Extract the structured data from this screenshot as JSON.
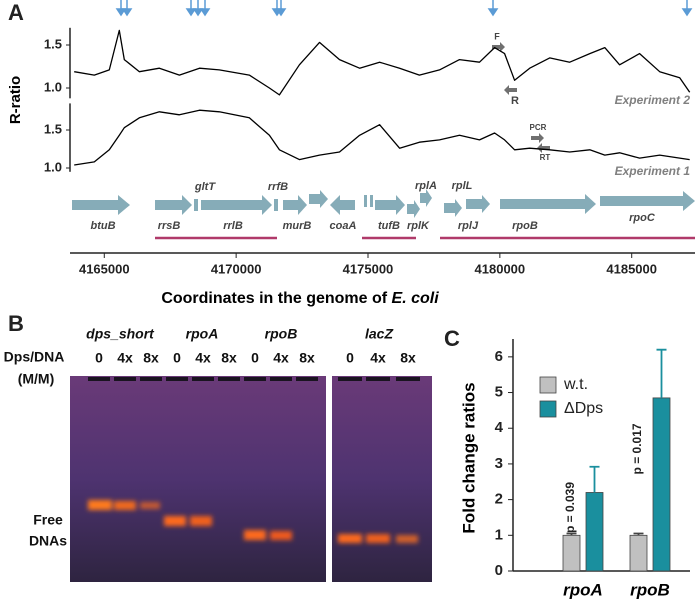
{
  "figure": {
    "panel_labels": [
      "A",
      "B",
      "C"
    ],
    "gel": {
      "lanes": [
        "dps_short",
        "rpoA",
        "rpoB",
        "lacZ"
      ],
      "ratio_label": [
        "Dps/DNA",
        "(M/M)"
      ],
      "lane_ratios": [
        "0",
        "4x",
        "8x",
        "0",
        "4x",
        "8x",
        "0",
        "4x",
        "8x",
        "0",
        "4x",
        "8x"
      ],
      "band_label": [
        "Free",
        "DNAs"
      ]
    }
  },
  "chart_data": [
    {
      "type": "line",
      "ylabel": "R-ratio",
      "x": [
        4163860,
        4164620,
        4165190,
        4165570,
        4165760,
        4166330,
        4167090,
        4167850,
        4168610,
        4169360,
        4170500,
        4171260,
        4171640,
        4172400,
        4173160,
        4173920,
        4174680,
        4175440,
        4176200,
        4176950,
        4177710,
        4178470,
        4179230,
        4179800,
        4180180,
        4180560,
        4181130,
        4181890,
        4182650,
        4183410,
        4183980,
        4184540,
        4185300,
        4186060,
        4186820,
        4187200
      ],
      "xlim": [
        4163700,
        4187400
      ],
      "ylim": [
        0.88,
        1.7
      ],
      "yticks": [
        {
          "value": 1,
          "label": "1.0"
        },
        {
          "value": 1.5,
          "label": "1.5"
        }
      ],
      "series": [
        {
          "name": "Experiment 2",
          "color": "#000000",
          "values": [
            1.19,
            1.15,
            1.21,
            1.67,
            1.33,
            1.19,
            1.23,
            1.15,
            1.23,
            1.21,
            1.15,
            1.0,
            0.92,
            1.27,
            1.53,
            1.33,
            1.23,
            1.3,
            1.23,
            1.15,
            1.21,
            1.33,
            1.3,
            1.47,
            1.4,
            1.09,
            1.23,
            1.35,
            1.3,
            1.4,
            1.47,
            1.27,
            1.4,
            1.19,
            1.12,
            0.95
          ]
        }
      ],
      "annotations": [
        "F",
        "R"
      ]
    },
    {
      "type": "line",
      "xlabel": [
        "Coordinates in the genome of ",
        "E. coli"
      ],
      "x": [
        4163860,
        4164620,
        4165190,
        4165570,
        4165760,
        4166330,
        4167090,
        4167850,
        4168610,
        4169360,
        4170500,
        4171260,
        4171640,
        4172400,
        4173160,
        4173920,
        4174680,
        4175440,
        4176200,
        4176950,
        4177710,
        4178470,
        4179230,
        4179800,
        4180180,
        4180560,
        4181130,
        4181890,
        4182650,
        4183410,
        4183980,
        4184540,
        4185300,
        4186060,
        4186820,
        4187200
      ],
      "xlim": [
        4163700,
        4187400
      ],
      "xticks": [
        4165000,
        4170000,
        4175000,
        4180000,
        4185000
      ],
      "ylim": [
        0.95,
        1.85
      ],
      "yticks": [
        {
          "value": 1,
          "label": "1.0"
        },
        {
          "value": 1.5,
          "label": "1.5"
        }
      ],
      "series": [
        {
          "name": "Experiment 1",
          "color": "#000000",
          "values": [
            1.04,
            1.08,
            1.24,
            1.43,
            1.53,
            1.66,
            1.74,
            1.7,
            1.76,
            1.74,
            1.66,
            1.43,
            1.24,
            1.11,
            1.17,
            1.21,
            1.43,
            1.57,
            1.26,
            1.34,
            1.37,
            1.43,
            1.37,
            1.46,
            1.37,
            1.24,
            1.26,
            1.24,
            1.21,
            1.24,
            1.17,
            1.2,
            1.13,
            1.17,
            1.13,
            1.11
          ]
        }
      ],
      "annotations": [
        "PCR",
        "RT"
      ],
      "genes": [
        "btuB",
        "rrsB",
        "gltT",
        "rrlB",
        "rrfB",
        "murB",
        "coaA",
        "tufB",
        "rplA",
        "rplL",
        "rplK",
        "rplJ",
        "rpoB",
        "rpoC"
      ]
    },
    {
      "type": "bar",
      "ylabel": "Fold change ratios",
      "categories": [
        "rpoA",
        "rpoB"
      ],
      "ylim": [
        0,
        6.5
      ],
      "yticks": [
        0,
        1,
        2,
        3,
        4,
        5,
        6
      ],
      "series": [
        {
          "name": "w.t.",
          "color": "#c0c0c0",
          "values": [
            1,
            1
          ],
          "errors": [
            0.05,
            0.05
          ]
        },
        {
          "name": "ΔDps",
          "color": "#1a8f9e",
          "values": [
            2.2,
            4.85
          ],
          "errors": [
            0.72,
            1.35
          ]
        }
      ],
      "annotations": [
        "p = 0.039",
        "p = 0.017"
      ]
    }
  ]
}
